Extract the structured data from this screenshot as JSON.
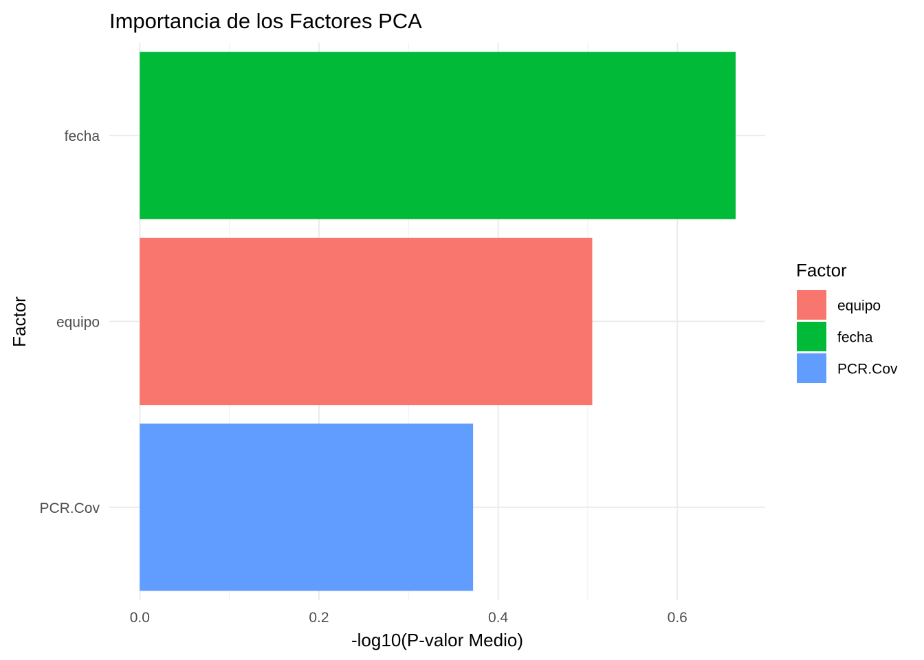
{
  "chart_data": {
    "type": "bar",
    "orientation": "horizontal",
    "title": "Importancia de los Factores PCA",
    "xlabel": "-log10(P-valor Medio)",
    "ylabel": "Factor",
    "categories": [
      "fecha",
      "equipo",
      "PCR.Cov"
    ],
    "values": [
      0.665,
      0.505,
      0.372
    ],
    "colors": [
      "#00BA38",
      "#F8766D",
      "#619CFF"
    ],
    "xlim": [
      -0.034,
      0.698
    ],
    "x_ticks": [
      0.0,
      0.2,
      0.4,
      0.6
    ],
    "x_tick_labels": [
      "0.0",
      "0.2",
      "0.4",
      "0.6"
    ],
    "grid": true,
    "legend": {
      "title": "Factor",
      "position": "right",
      "items": [
        {
          "label": "equipo",
          "color": "#F8766D"
        },
        {
          "label": "fecha",
          "color": "#00BA38"
        },
        {
          "label": "PCR.Cov",
          "color": "#619CFF"
        }
      ]
    }
  }
}
